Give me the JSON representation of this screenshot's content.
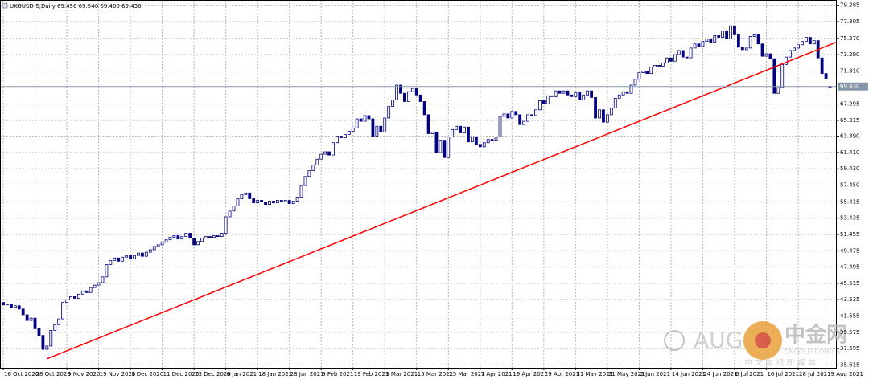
{
  "chart_data": {
    "type": "candlestick",
    "title": "UKOUSD-5,Daily 69.450 69.540 69.400 69.430",
    "categories": [
      "16 Oct 2020",
      null,
      null,
      null,
      null,
      null,
      null,
      null,
      "28 Oct 2020",
      null,
      null,
      null,
      null,
      null,
      null,
      null,
      "9 Nov 2020",
      null,
      null,
      null,
      null,
      null,
      null,
      null,
      "19 Nov 2020",
      null,
      null,
      null,
      null,
      null,
      null,
      null,
      "1 Dec 2020",
      null,
      null,
      null,
      null,
      null,
      null,
      null,
      "11 Dec 2020",
      null,
      null,
      null,
      null,
      null,
      null,
      null,
      "23 Dec 2020",
      null,
      null,
      null,
      null,
      null,
      null,
      null,
      "6 Jan 2021",
      null,
      null,
      null,
      null,
      null,
      null,
      null,
      "18 Jan 2021",
      null,
      null,
      null,
      null,
      null,
      null,
      null,
      "28 Jan 2021",
      null,
      null,
      null,
      null,
      null,
      null,
      null,
      "9 Feb 2021",
      null,
      null,
      null,
      null,
      null,
      null,
      null,
      "19 Feb 2021",
      null,
      null,
      null,
      null,
      null,
      null,
      null,
      "3 Mar 2021",
      null,
      null,
      null,
      null,
      null,
      null,
      null,
      "15 Mar 2021",
      null,
      null,
      null,
      null,
      null,
      null,
      null,
      "25 Mar 2021",
      null,
      null,
      null,
      null,
      null,
      null,
      null,
      "7 Apr 2021",
      null,
      null,
      null,
      null,
      null,
      null,
      null,
      "19 Apr 2021",
      null,
      null,
      null,
      null,
      null,
      null,
      null,
      "29 Apr 2021",
      null,
      null,
      null,
      null,
      null,
      null,
      null,
      "11 May 2021",
      null,
      null,
      null,
      null,
      null,
      null,
      null,
      "21 May 2021",
      null,
      null,
      null,
      null,
      null,
      null,
      null,
      "2 Jun 2021",
      null,
      null,
      null,
      null,
      null,
      null,
      null,
      "14 Jun 2021",
      null,
      null,
      null,
      null,
      null,
      null,
      null,
      "24 Jun 2021",
      null,
      null,
      null,
      null,
      null,
      null,
      null,
      "6 Jul 2021",
      null,
      null,
      null,
      null,
      null,
      null,
      null,
      "16 Jul 2021",
      null,
      null,
      null,
      null,
      null,
      null,
      null,
      "28 Jul 2021",
      null,
      null,
      null,
      null,
      null,
      null,
      null,
      "9 Aug 2021"
    ],
    "open": [
      43.2,
      42.9,
      43.0,
      42.6,
      42.8,
      42.4,
      41.7,
      41.0,
      41.3,
      40.0,
      39.2,
      37.5,
      37.9,
      39.8,
      40.5,
      41.2,
      43.2,
      43.5,
      43.9,
      43.7,
      44.2,
      44.6,
      44.4,
      45.0,
      45.3,
      45.6,
      46.3,
      47.8,
      48.3,
      48.6,
      48.2,
      48.7,
      48.9,
      48.5,
      48.9,
      49.2,
      48.8,
      49.3,
      49.6,
      50.0,
      50.2,
      50.5,
      50.8,
      51.1,
      51.3,
      50.9,
      51.2,
      51.6,
      51.0,
      50.2,
      50.6,
      51.0,
      51.2,
      51.1,
      51.3,
      51.2,
      51.6,
      53.6,
      54.3,
      54.9,
      55.8,
      56.3,
      56.5,
      55.8,
      55.3,
      55.6,
      55.4,
      55.1,
      55.5,
      55.3,
      55.6,
      55.4,
      55.6,
      55.2,
      55.5,
      56.0,
      57.4,
      58.5,
      59.2,
      59.9,
      60.6,
      61.2,
      61.5,
      61.1,
      62.6,
      63.4,
      63.2,
      63.6,
      64.0,
      64.4,
      65.5,
      65.2,
      65.9,
      65.5,
      63.4,
      64.6,
      63.9,
      65.6,
      67.0,
      67.8,
      69.6,
      68.6,
      67.6,
      68.8,
      69.2,
      68.4,
      67.6,
      66.0,
      63.7,
      63.9,
      61.4,
      62.9,
      60.8,
      63.3,
      64.2,
      64.6,
      63.8,
      64.5,
      62.7,
      63.3,
      62.4,
      62.1,
      62.6,
      63.0,
      62.9,
      63.3,
      65.8,
      66.1,
      65.6,
      66.4,
      66.0,
      64.8,
      65.2,
      66.0,
      65.9,
      66.6,
      67.7,
      67.3,
      68.3,
      68.2,
      68.9,
      68.6,
      68.9,
      68.4,
      68.2,
      68.7,
      67.8,
      68.4,
      68.9,
      68.1,
      65.6,
      66.6,
      65.1,
      66.0,
      66.8,
      68.0,
      68.4,
      68.8,
      68.6,
      69.6,
      70.3,
      71.1,
      71.3,
      71.0,
      71.8,
      72.0,
      71.9,
      72.3,
      72.9,
      72.5,
      73.3,
      73.8,
      73.0,
      72.9,
      74.1,
      74.6,
      74.3,
      74.9,
      75.2,
      74.8,
      75.6,
      75.4,
      76.2,
      75.2,
      76.8,
      75.8,
      74.2,
      73.9,
      74.1,
      75.5,
      75.8,
      74.6,
      73.1,
      73.4,
      72.8,
      68.6,
      69.3,
      72.1,
      73.0,
      73.8,
      74.1,
      74.5,
      74.9,
      75.4,
      74.6,
      75.0,
      72.9,
      71.0,
      69.45
    ],
    "close": [
      42.9,
      43.0,
      42.6,
      42.8,
      42.4,
      41.7,
      41.0,
      41.3,
      40.0,
      39.2,
      37.5,
      37.9,
      39.8,
      40.5,
      41.2,
      43.2,
      43.5,
      43.9,
      43.7,
      44.2,
      44.6,
      44.4,
      45.0,
      45.3,
      45.6,
      46.3,
      47.8,
      48.3,
      48.6,
      48.2,
      48.7,
      48.9,
      48.5,
      48.9,
      49.2,
      48.8,
      49.3,
      49.6,
      50.0,
      50.2,
      50.5,
      50.8,
      51.1,
      51.3,
      50.9,
      51.2,
      51.6,
      51.0,
      50.2,
      50.6,
      51.0,
      51.2,
      51.1,
      51.3,
      51.2,
      51.6,
      53.6,
      54.3,
      54.9,
      55.8,
      56.3,
      56.5,
      55.8,
      55.3,
      55.6,
      55.4,
      55.1,
      55.5,
      55.3,
      55.6,
      55.4,
      55.6,
      55.2,
      55.5,
      56.0,
      57.4,
      58.5,
      59.2,
      59.9,
      60.6,
      61.2,
      61.5,
      61.1,
      62.6,
      63.4,
      63.2,
      63.6,
      64.0,
      64.4,
      65.5,
      65.2,
      65.9,
      65.5,
      63.4,
      64.6,
      63.9,
      65.6,
      67.0,
      67.8,
      69.6,
      68.6,
      67.6,
      68.8,
      69.2,
      68.4,
      67.6,
      66.0,
      63.7,
      63.9,
      61.4,
      62.9,
      60.8,
      63.3,
      64.2,
      64.6,
      63.8,
      64.5,
      62.7,
      63.3,
      62.4,
      62.1,
      62.6,
      63.0,
      62.9,
      63.3,
      65.8,
      66.1,
      65.6,
      66.4,
      66.0,
      64.8,
      65.2,
      66.0,
      65.9,
      66.6,
      67.7,
      67.3,
      68.3,
      68.2,
      68.9,
      68.6,
      68.9,
      68.4,
      68.2,
      68.7,
      67.8,
      68.4,
      68.9,
      68.1,
      65.6,
      66.6,
      65.1,
      66.0,
      66.8,
      68.0,
      68.4,
      68.8,
      68.6,
      69.6,
      70.3,
      71.1,
      71.3,
      71.0,
      71.8,
      72.0,
      71.9,
      72.3,
      72.9,
      72.5,
      73.3,
      73.8,
      73.0,
      72.9,
      74.1,
      74.6,
      74.3,
      74.9,
      75.2,
      74.8,
      75.6,
      75.4,
      76.2,
      75.2,
      76.8,
      75.8,
      74.2,
      73.9,
      74.1,
      75.5,
      75.8,
      74.6,
      73.1,
      73.4,
      72.8,
      68.6,
      69.3,
      72.1,
      73.0,
      73.8,
      74.1,
      74.5,
      74.9,
      75.4,
      74.6,
      75.0,
      72.9,
      71.0,
      70.4,
      69.43
    ],
    "up_color": "#ffffff",
    "down_color": "#000080",
    "outline_color": "#000080",
    "ylim": [
      35.26,
      79.94
    ],
    "yticks": [
      79.285,
      77.305,
      {
        "value": 75.27,
        "label": "75.270"
      },
      {
        "value": 73.29,
        "label": "73.290"
      },
      {
        "value": 71.31,
        "label": "71.310"
      },
      67.295,
      65.315,
      {
        "value": 63.39,
        "label": "63.390"
      },
      {
        "value": 61.41,
        "label": "61.410"
      },
      {
        "value": 59.43,
        "label": "59.430"
      },
      {
        "value": 57.45,
        "label": "57.450"
      },
      55.415,
      53.435,
      51.455,
      49.475,
      47.495,
      45.515,
      43.535,
      41.555,
      39.575,
      37.595,
      35.615
    ],
    "grid": true,
    "bid": {
      "value": 69.43,
      "label": "69.430",
      "color": "#8797aa"
    },
    "trendline": {
      "color": "#ff0000",
      "x": [
        11,
        208
      ],
      "values": [
        36.35,
        74.5
      ]
    },
    "watermark": {
      "brand": "AUG",
      "name": "中金网",
      "site": "CNGOLD.COM.CN",
      "slogan": "中 文 财 经 新 媒 体"
    }
  }
}
